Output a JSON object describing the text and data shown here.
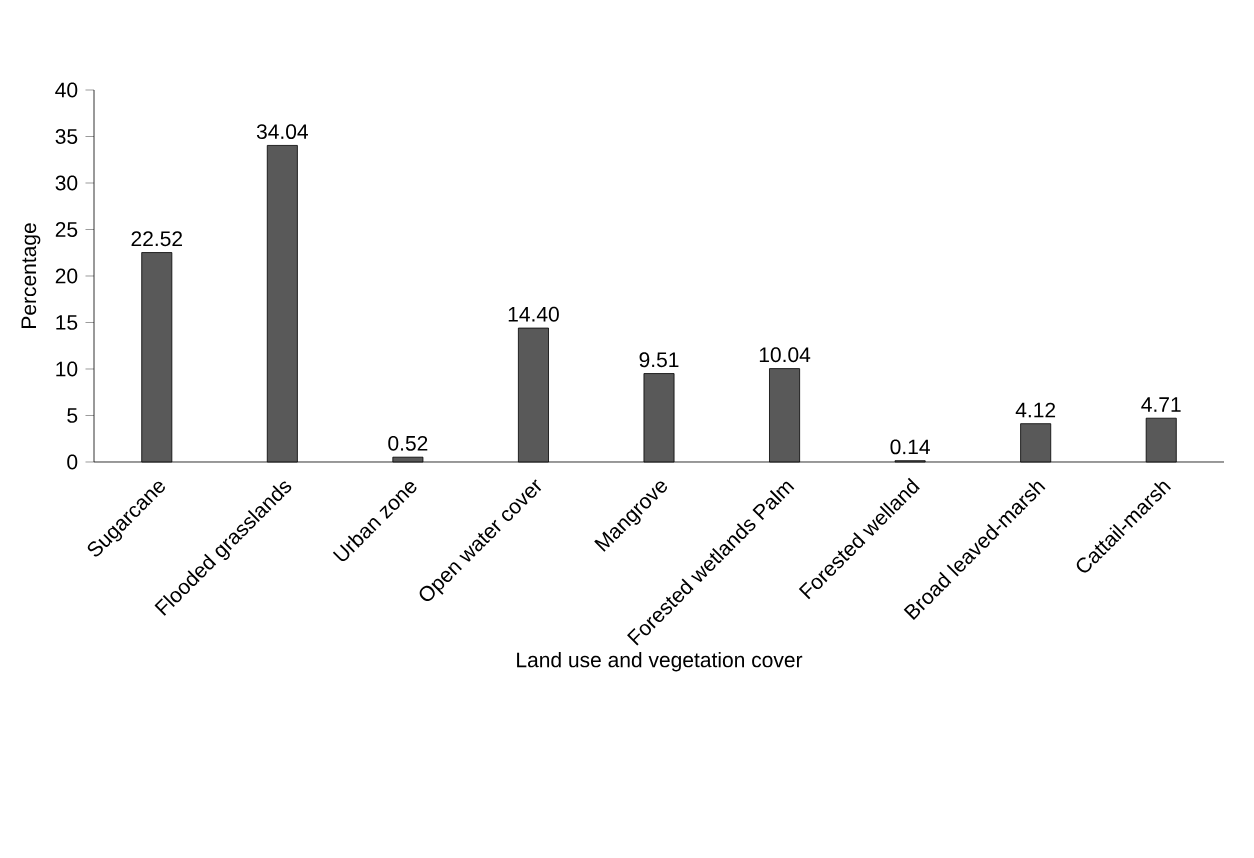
{
  "chart_data": {
    "type": "bar",
    "xlabel": "Land use and vegetation cover",
    "ylabel": "Percentage",
    "categories": [
      "Sugarcane",
      "Flooded grasslands",
      "Urban zone",
      "Open water cover",
      "Mangrove",
      "Forested wetlands Palm",
      "Forested welland",
      "Broad leaved-marsh",
      "Cattail-marsh"
    ],
    "values": [
      22.52,
      34.04,
      0.52,
      14.4,
      9.51,
      10.04,
      0.14,
      4.12,
      4.71
    ],
    "value_labels": [
      "22.52",
      "34.04",
      "0.52",
      "14.40",
      "9.51",
      "10.04",
      "0.14",
      "4.12",
      "4.71"
    ],
    "color": "#595959",
    "ylim": [
      0,
      40
    ],
    "yticks": [
      0,
      5,
      10,
      15,
      20,
      25,
      30,
      35,
      40
    ]
  }
}
